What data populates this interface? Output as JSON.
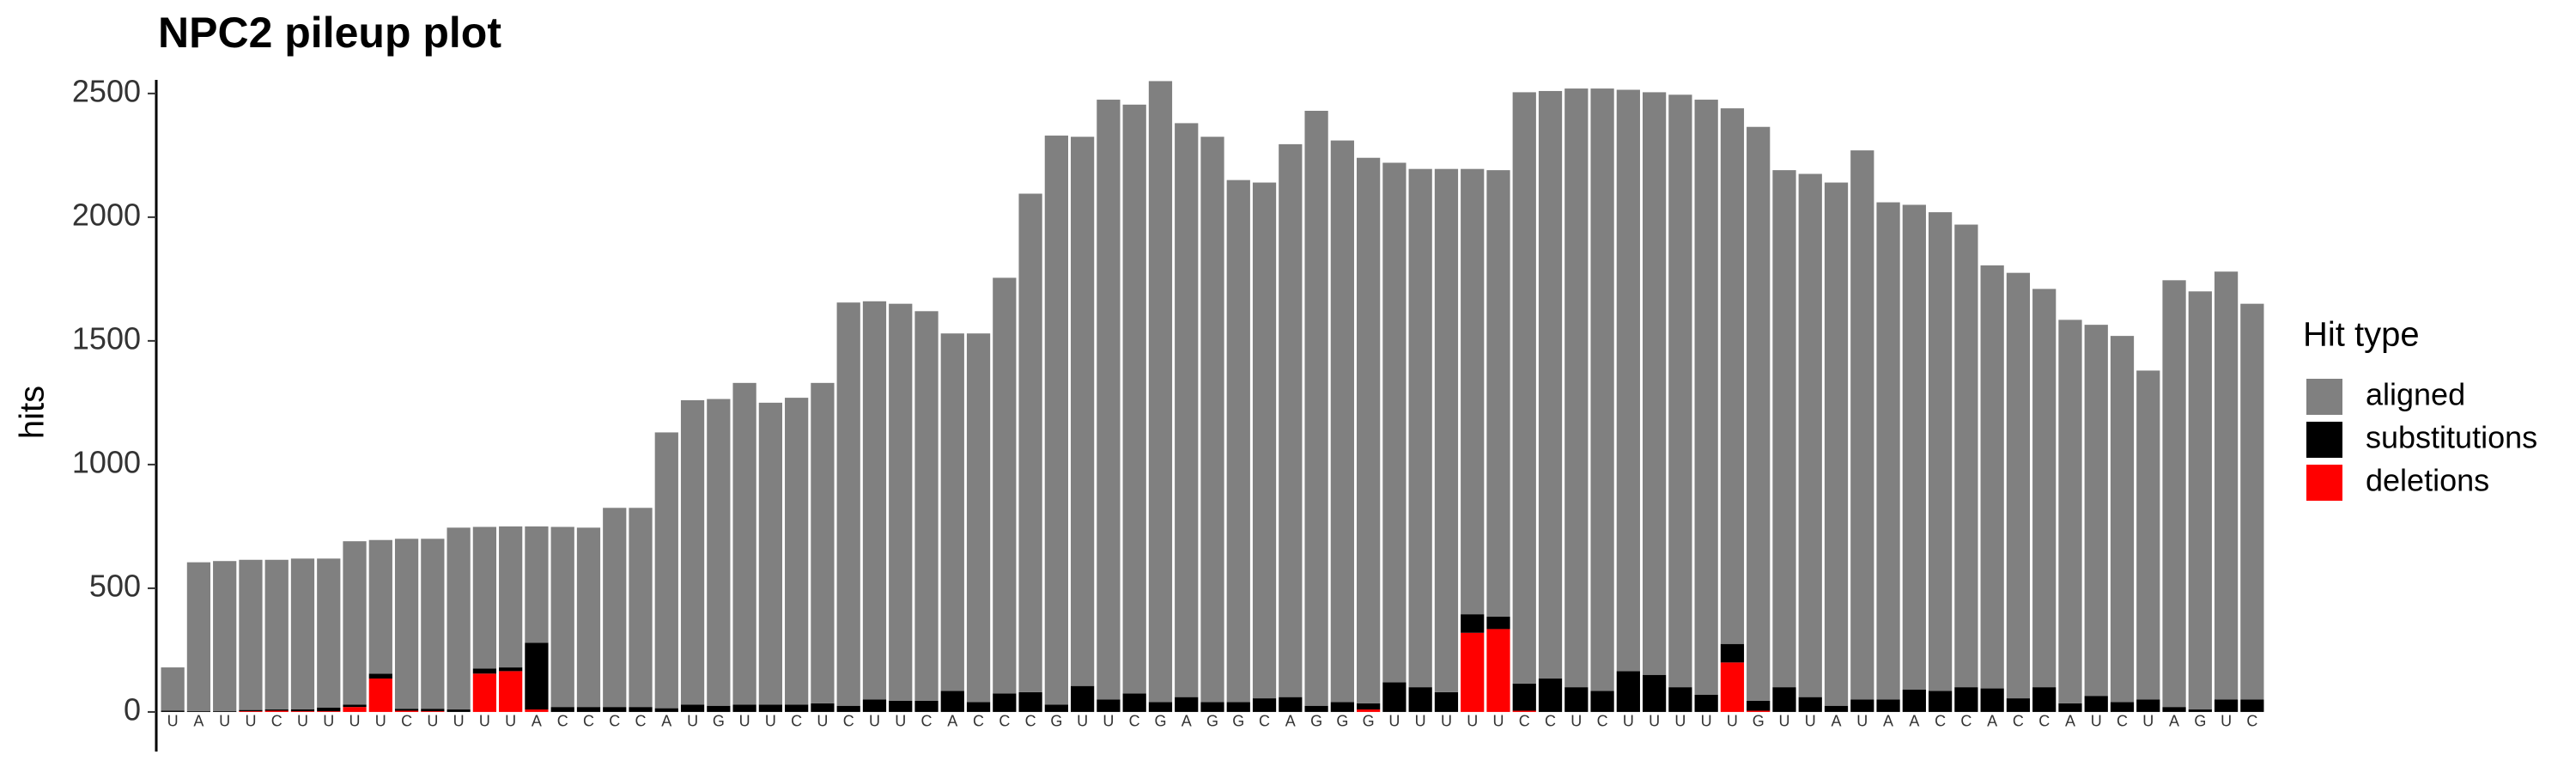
{
  "chart_data": {
    "type": "stacked_bar",
    "title": "NPC2 pileup plot",
    "y_label": "hits",
    "categories": [
      "U",
      "A",
      "U",
      "U",
      "C",
      "U",
      "U",
      "U",
      "U",
      "C",
      "U",
      "U",
      "U",
      "U",
      "A",
      "C",
      "C",
      "C",
      "C",
      "A",
      "U",
      "G",
      "U",
      "U",
      "C",
      "U",
      "C",
      "U",
      "U",
      "C",
      "A",
      "C",
      "C",
      "C",
      "G",
      "U",
      "U",
      "C",
      "G",
      "A",
      "G",
      "G",
      "C",
      "A",
      "G",
      "G",
      "G",
      "U",
      "U",
      "U",
      "U",
      "U",
      "C",
      "C",
      "U",
      "C",
      "U",
      "U",
      "U",
      "U",
      "U",
      "G",
      "U",
      "U",
      "A",
      "U",
      "A",
      "A",
      "C",
      "C",
      "A",
      "C",
      "C",
      "A",
      "U",
      "C",
      "U",
      "A",
      "G",
      "U",
      "C"
    ],
    "legend_title": "Hit type",
    "series": [
      {
        "name": "aligned",
        "color": "#808080",
        "values": [
          175,
          602,
          607,
          607,
          605,
          609,
          602,
          660,
          540,
          687,
          687,
          735,
          573,
          570,
          470,
          728,
          725,
          805,
          805,
          1115,
          1230,
          1240,
          1300,
          1220,
          1240,
          1295,
          1630,
          1610,
          1605,
          1575,
          1445,
          1490,
          1680,
          2015,
          2300,
          2220,
          2425,
          2380,
          2510,
          2320,
          2285,
          2110,
          2085,
          2235,
          2405,
          2270,
          2205,
          2100,
          2095,
          2115,
          1800,
          1805,
          2390,
          2375,
          2420,
          2435,
          2350,
          2355,
          2395,
          2405,
          2165,
          2320,
          2090,
          2115,
          2115,
          2220,
          2010,
          1960,
          1935,
          1870,
          1710,
          1720,
          1610,
          1550,
          1500,
          1480,
          1330,
          1725,
          1690,
          1730,
          1600
        ]
      },
      {
        "name": "substitutions",
        "color": "#000000",
        "values": [
          5,
          3,
          3,
          5,
          5,
          8,
          15,
          10,
          20,
          8,
          10,
          10,
          20,
          15,
          270,
          20,
          20,
          20,
          20,
          15,
          30,
          25,
          30,
          30,
          30,
          35,
          25,
          50,
          45,
          45,
          85,
          40,
          75,
          80,
          30,
          105,
          50,
          75,
          40,
          60,
          40,
          40,
          55,
          60,
          25,
          40,
          25,
          120,
          100,
          80,
          75,
          50,
          110,
          135,
          100,
          85,
          165,
          150,
          100,
          70,
          75,
          40,
          100,
          60,
          25,
          50,
          50,
          90,
          85,
          100,
          95,
          55,
          100,
          35,
          65,
          40,
          50,
          20,
          10,
          50,
          50
        ]
      },
      {
        "name": "deletions",
        "color": "#ff0000",
        "values": [
          0,
          0,
          0,
          3,
          5,
          3,
          3,
          20,
          135,
          5,
          3,
          0,
          155,
          165,
          10,
          0,
          0,
          0,
          0,
          0,
          0,
          0,
          0,
          0,
          0,
          0,
          0,
          0,
          0,
          0,
          0,
          0,
          0,
          0,
          0,
          0,
          0,
          0,
          0,
          0,
          0,
          0,
          0,
          0,
          0,
          0,
          10,
          0,
          0,
          0,
          320,
          335,
          5,
          0,
          0,
          0,
          0,
          0,
          0,
          0,
          200,
          5,
          0,
          0,
          0,
          0,
          0,
          0,
          0,
          0,
          0,
          0,
          0,
          0,
          0,
          0,
          0,
          0,
          0,
          0,
          0
        ]
      }
    ],
    "ylim": [
      -160,
      2555
    ],
    "yticks": [
      0,
      500,
      1000,
      1500,
      2000,
      2500
    ]
  }
}
